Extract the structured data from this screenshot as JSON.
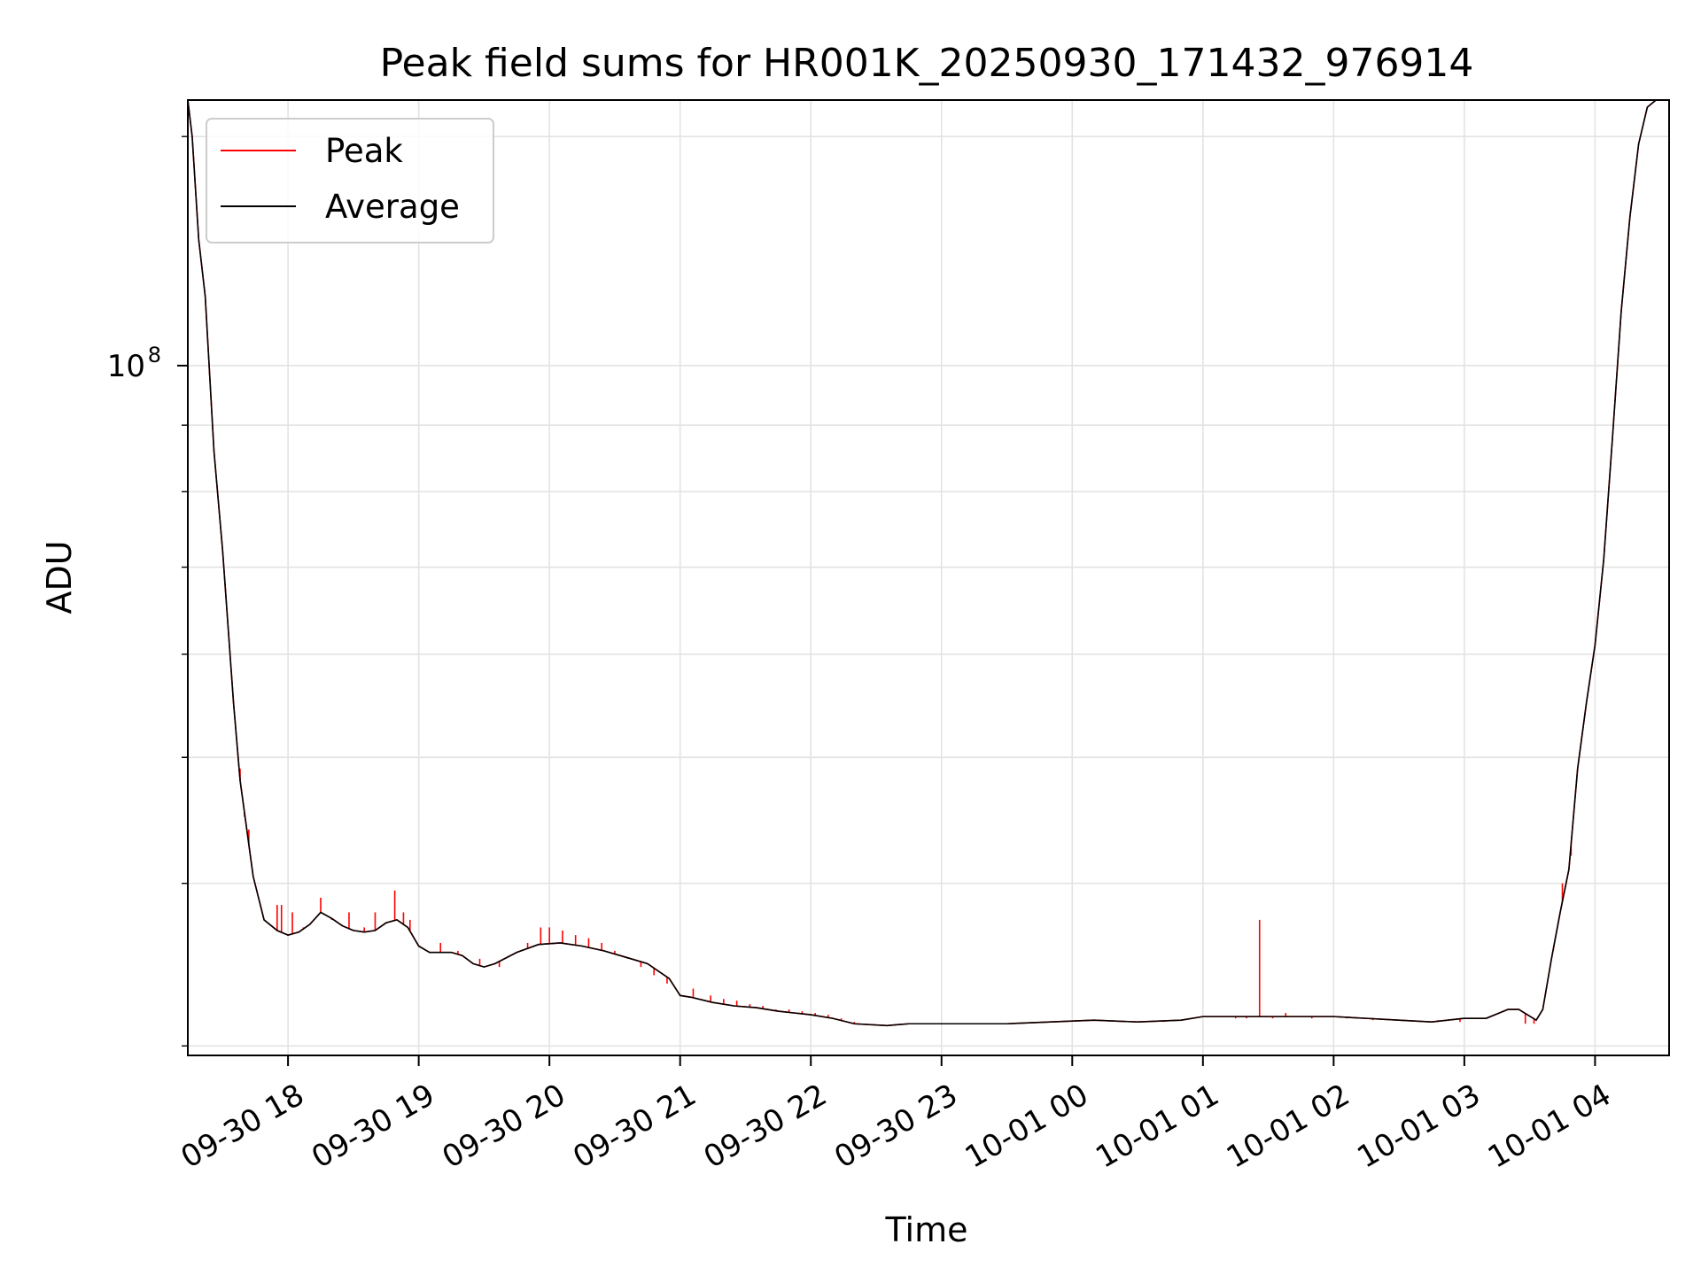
{
  "chart_data": {
    "type": "line",
    "title": "Peak field sums for HR001K_20250930_171432_976914",
    "xlabel": "Time",
    "ylabel": "ADU",
    "y_scale": "log",
    "grid": true,
    "legend_position": "top-left",
    "x_range": [
      "2025-09-30 17:14",
      "2025-10-01 04:34"
    ],
    "ylim": [
      29500000,
      160000000
    ],
    "x_ticks": [
      "09-30 18",
      "09-30 19",
      "09-30 20",
      "09-30 21",
      "09-30 22",
      "09-30 23",
      "10-01 00",
      "10-01 01",
      "10-01 02",
      "10-01 03",
      "10-01 04"
    ],
    "y_ticks": [
      {
        "value": 100000000,
        "base": "10",
        "exponent": "8"
      }
    ],
    "series": [
      {
        "name": "Peak",
        "color": "#ff0000",
        "spikes": [
          [
            "2025-09-30 17:38",
            49000000
          ],
          [
            "2025-09-30 17:40",
            45000000
          ],
          [
            "2025-09-30 17:42",
            44000000
          ],
          [
            "2025-09-30 17:55",
            38500000
          ],
          [
            "2025-09-30 17:57",
            38500000
          ],
          [
            "2025-09-30 18:02",
            38000000
          ],
          [
            "2025-09-30 18:07",
            37000000
          ],
          [
            "2025-09-30 18:15",
            39000000
          ],
          [
            "2025-09-30 18:20",
            37500000
          ],
          [
            "2025-09-30 18:28",
            38000000
          ],
          [
            "2025-09-30 18:35",
            37000000
          ],
          [
            "2025-09-30 18:40",
            38000000
          ],
          [
            "2025-09-30 18:49",
            39500000
          ],
          [
            "2025-09-30 18:53",
            38000000
          ],
          [
            "2025-09-30 18:56",
            37500000
          ],
          [
            "2025-09-30 19:10",
            36000000
          ],
          [
            "2025-09-30 19:18",
            35500000
          ],
          [
            "2025-09-30 19:28",
            35000000
          ],
          [
            "2025-09-30 19:37",
            34500000
          ],
          [
            "2025-09-30 19:50",
            36000000
          ],
          [
            "2025-09-30 19:56",
            37000000
          ],
          [
            "2025-09-30 20:00",
            37000000
          ],
          [
            "2025-09-30 20:06",
            36800000
          ],
          [
            "2025-09-30 20:12",
            36500000
          ],
          [
            "2025-09-30 20:18",
            36300000
          ],
          [
            "2025-09-30 20:24",
            36000000
          ],
          [
            "2025-09-30 20:30",
            35500000
          ],
          [
            "2025-09-30 20:36",
            35000000
          ],
          [
            "2025-09-30 20:42",
            34500000
          ],
          [
            "2025-09-30 20:48",
            34000000
          ],
          [
            "2025-09-30 20:54",
            33500000
          ],
          [
            "2025-09-30 21:06",
            33200000
          ],
          [
            "2025-09-30 21:14",
            32800000
          ],
          [
            "2025-09-30 21:20",
            32600000
          ],
          [
            "2025-09-30 21:26",
            32500000
          ],
          [
            "2025-09-30 21:32",
            32300000
          ],
          [
            "2025-09-30 21:38",
            32200000
          ],
          [
            "2025-09-30 21:44",
            32000000
          ],
          [
            "2025-09-30 21:50",
            32000000
          ],
          [
            "2025-09-30 21:56",
            31900000
          ],
          [
            "2025-09-30 22:02",
            31800000
          ],
          [
            "2025-09-30 22:08",
            31700000
          ],
          [
            "2025-09-30 22:14",
            31500000
          ],
          [
            "2025-09-30 22:20",
            31300000
          ],
          [
            "2025-09-30 22:50",
            31200000
          ],
          [
            "2025-09-30 23:02",
            31200000
          ],
          [
            "2025-09-30 23:26",
            31200000
          ],
          [
            "2025-09-30 23:48",
            31300000
          ],
          [
            "2025-10-01 00:06",
            31400000
          ],
          [
            "2025-10-01 00:12",
            31400000
          ],
          [
            "2025-10-01 00:22",
            31300000
          ],
          [
            "2025-10-01 00:42",
            31300000
          ],
          [
            "2025-10-01 00:50",
            31400000
          ],
          [
            "2025-10-01 00:55",
            31500000
          ],
          [
            "2025-10-01 01:15",
            31500000
          ],
          [
            "2025-10-01 01:20",
            31500000
          ],
          [
            "2025-10-01 01:26",
            37500000
          ],
          [
            "2025-10-01 01:32",
            31500000
          ],
          [
            "2025-10-01 01:38",
            31800000
          ],
          [
            "2025-10-01 01:50",
            31500000
          ],
          [
            "2025-10-01 02:06",
            31500000
          ],
          [
            "2025-10-01 02:18",
            31400000
          ],
          [
            "2025-10-01 02:24",
            31400000
          ],
          [
            "2025-10-01 02:30",
            31400000
          ],
          [
            "2025-10-01 02:48",
            31400000
          ],
          [
            "2025-10-01 02:58",
            31300000
          ],
          [
            "2025-10-01 03:12",
            31600000
          ],
          [
            "2025-10-01 03:28",
            31200000
          ],
          [
            "2025-10-01 03:32",
            31200000
          ],
          [
            "2025-10-01 03:40",
            35000000
          ],
          [
            "2025-10-01 03:45",
            40000000
          ],
          [
            "2025-10-01 03:49",
            42000000
          ]
        ]
      },
      {
        "name": "Average",
        "color": "#000000",
        "points": [
          [
            "2025-09-30 17:14",
            160000000
          ],
          [
            "2025-09-30 17:16",
            150000000
          ],
          [
            "2025-09-30 17:19",
            125000000
          ],
          [
            "2025-09-30 17:22",
            113000000
          ],
          [
            "2025-09-30 17:26",
            86000000
          ],
          [
            "2025-09-30 17:30",
            72000000
          ],
          [
            "2025-09-30 17:35",
            55000000
          ],
          [
            "2025-09-30 17:38",
            48000000
          ],
          [
            "2025-09-30 17:44",
            40500000
          ],
          [
            "2025-09-30 17:49",
            37500000
          ],
          [
            "2025-09-30 17:55",
            36800000
          ],
          [
            "2025-09-30 18:00",
            36500000
          ],
          [
            "2025-09-30 18:05",
            36700000
          ],
          [
            "2025-09-30 18:10",
            37200000
          ],
          [
            "2025-09-30 18:15",
            38000000
          ],
          [
            "2025-09-30 18:20",
            37600000
          ],
          [
            "2025-09-30 18:25",
            37100000
          ],
          [
            "2025-09-30 18:30",
            36800000
          ],
          [
            "2025-09-30 18:35",
            36700000
          ],
          [
            "2025-09-30 18:40",
            36800000
          ],
          [
            "2025-09-30 18:45",
            37300000
          ],
          [
            "2025-09-30 18:50",
            37500000
          ],
          [
            "2025-09-30 18:55",
            37000000
          ],
          [
            "2025-09-30 19:00",
            35800000
          ],
          [
            "2025-09-30 19:05",
            35400000
          ],
          [
            "2025-09-30 19:15",
            35400000
          ],
          [
            "2025-09-30 19:20",
            35200000
          ],
          [
            "2025-09-30 19:25",
            34700000
          ],
          [
            "2025-09-30 19:30",
            34500000
          ],
          [
            "2025-09-30 19:35",
            34700000
          ],
          [
            "2025-09-30 19:45",
            35400000
          ],
          [
            "2025-09-30 19:55",
            35900000
          ],
          [
            "2025-09-30 20:05",
            36000000
          ],
          [
            "2025-09-30 20:15",
            35800000
          ],
          [
            "2025-09-30 20:25",
            35500000
          ],
          [
            "2025-09-30 20:35",
            35100000
          ],
          [
            "2025-09-30 20:45",
            34700000
          ],
          [
            "2025-09-30 20:55",
            33800000
          ],
          [
            "2025-09-30 21:00",
            32800000
          ],
          [
            "2025-09-30 21:05",
            32700000
          ],
          [
            "2025-09-30 21:15",
            32400000
          ],
          [
            "2025-09-30 21:25",
            32200000
          ],
          [
            "2025-09-30 21:35",
            32100000
          ],
          [
            "2025-09-30 21:45",
            31900000
          ],
          [
            "2025-09-30 22:00",
            31700000
          ],
          [
            "2025-09-30 22:10",
            31500000
          ],
          [
            "2025-09-30 22:20",
            31200000
          ],
          [
            "2025-09-30 22:35",
            31100000
          ],
          [
            "2025-09-30 22:45",
            31200000
          ],
          [
            "2025-09-30 22:55",
            31200000
          ],
          [
            "2025-09-30 23:10",
            31200000
          ],
          [
            "2025-09-30 23:30",
            31200000
          ],
          [
            "2025-09-30 23:50",
            31300000
          ],
          [
            "2025-10-01 00:10",
            31400000
          ],
          [
            "2025-10-01 00:30",
            31300000
          ],
          [
            "2025-10-01 00:50",
            31400000
          ],
          [
            "2025-10-01 01:00",
            31600000
          ],
          [
            "2025-10-01 01:20",
            31600000
          ],
          [
            "2025-10-01 01:40",
            31600000
          ],
          [
            "2025-10-01 02:00",
            31600000
          ],
          [
            "2025-10-01 02:15",
            31500000
          ],
          [
            "2025-10-01 02:30",
            31400000
          ],
          [
            "2025-10-01 02:45",
            31300000
          ],
          [
            "2025-10-01 03:00",
            31500000
          ],
          [
            "2025-10-01 03:10",
            31500000
          ],
          [
            "2025-10-01 03:20",
            32000000
          ],
          [
            "2025-10-01 03:25",
            32000000
          ],
          [
            "2025-10-01 03:33",
            31400000
          ],
          [
            "2025-10-01 03:36",
            32000000
          ],
          [
            "2025-10-01 03:40",
            35000000
          ],
          [
            "2025-10-01 03:44",
            38000000
          ],
          [
            "2025-10-01 03:48",
            41000000
          ],
          [
            "2025-10-01 03:52",
            49000000
          ],
          [
            "2025-10-01 03:56",
            55000000
          ],
          [
            "2025-10-01 04:00",
            61000000
          ],
          [
            "2025-10-01 04:04",
            71000000
          ],
          [
            "2025-10-01 04:08",
            88000000
          ],
          [
            "2025-10-01 04:12",
            110000000
          ],
          [
            "2025-10-01 04:16",
            130000000
          ],
          [
            "2025-10-01 04:20",
            148000000
          ],
          [
            "2025-10-01 04:24",
            158000000
          ],
          [
            "2025-10-01 04:28",
            160000000
          ]
        ]
      }
    ]
  }
}
